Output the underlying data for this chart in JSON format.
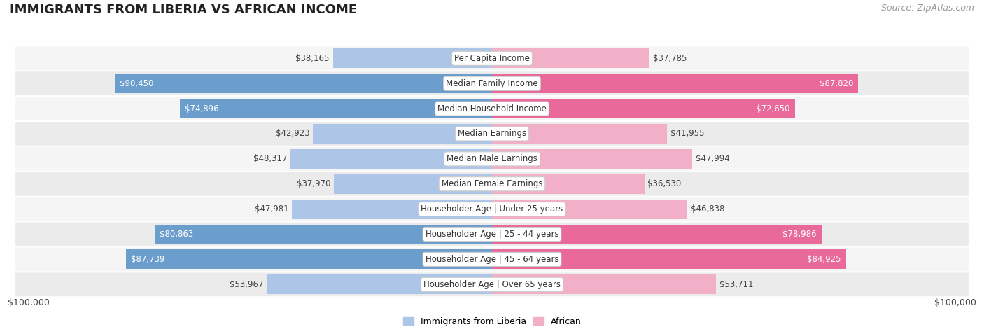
{
  "title": "IMMIGRANTS FROM LIBERIA VS AFRICAN INCOME",
  "source": "Source: ZipAtlas.com",
  "categories": [
    "Per Capita Income",
    "Median Family Income",
    "Median Household Income",
    "Median Earnings",
    "Median Male Earnings",
    "Median Female Earnings",
    "Householder Age | Under 25 years",
    "Householder Age | 25 - 44 years",
    "Householder Age | 45 - 64 years",
    "Householder Age | Over 65 years"
  ],
  "liberia_values": [
    38165,
    90450,
    74896,
    42923,
    48317,
    37970,
    47981,
    80863,
    87739,
    53967
  ],
  "african_values": [
    37785,
    87820,
    72650,
    41955,
    47994,
    36530,
    46838,
    78986,
    84925,
    53711
  ],
  "liberia_labels": [
    "$38,165",
    "$90,450",
    "$74,896",
    "$42,923",
    "$48,317",
    "$37,970",
    "$47,981",
    "$80,863",
    "$87,739",
    "$53,967"
  ],
  "african_labels": [
    "$37,785",
    "$87,820",
    "$72,650",
    "$41,955",
    "$47,994",
    "$36,530",
    "$46,838",
    "$78,986",
    "$84,925",
    "$53,711"
  ],
  "max_value": 100000,
  "liberia_color_light": "#adc6e8",
  "liberia_color_dark": "#6b9ecc",
  "african_color_light": "#f2b0c8",
  "african_color_dark": "#e8699a",
  "row_bg_odd": "#f5f5f5",
  "row_bg_even": "#ebebeb",
  "x_axis_label_left": "$100,000",
  "x_axis_label_right": "$100,000",
  "legend_liberia": "Immigrants from Liberia",
  "legend_african": "African",
  "title_fontsize": 13,
  "source_fontsize": 9,
  "bar_fontsize": 8.5,
  "category_fontsize": 8.5,
  "threshold_dark": 60000
}
